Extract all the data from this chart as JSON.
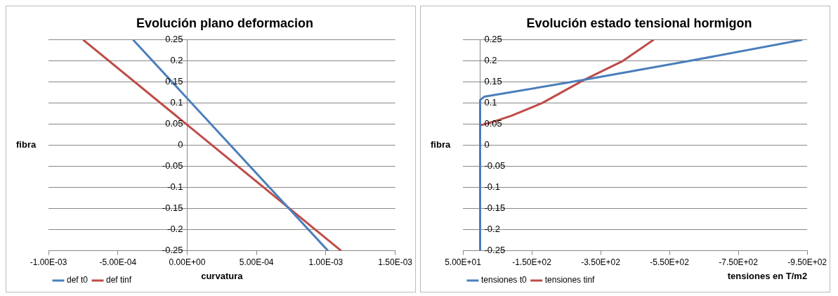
{
  "chart_data": [
    {
      "type": "line",
      "title": "Evolución plano deformacion",
      "xlabel": "curvatura",
      "ylabel": "fibra",
      "xlim": [
        -0.001,
        0.0015
      ],
      "xticks": [
        {
          "value": -0.001,
          "label": "-1.00E-03"
        },
        {
          "value": -0.0005,
          "label": "-5.00E-04"
        },
        {
          "value": 0,
          "label": "0.00E+00"
        },
        {
          "value": 0.0005,
          "label": "5.00E-04"
        },
        {
          "value": 0.001,
          "label": "1.00E-03"
        },
        {
          "value": 0.0015,
          "label": "1.50E-03"
        }
      ],
      "ylim": [
        -0.25,
        0.25
      ],
      "yticks": [
        -0.25,
        -0.2,
        -0.15,
        -0.1,
        -0.05,
        0,
        0.05,
        0.1,
        0.15,
        0.2,
        0.25
      ],
      "grid": "y",
      "legend": "bottom left",
      "marker": "none",
      "line_style": "solid",
      "series": [
        {
          "name": "def t0",
          "color": "#4a7ebb",
          "x": [
            -0.00039,
            0.001015
          ],
          "values": [
            0.25,
            -0.25
          ]
        },
        {
          "name": "def tinf",
          "color": "#be4b48",
          "x": [
            -0.00075,
            0.00111
          ],
          "values": [
            0.25,
            -0.25
          ]
        }
      ]
    },
    {
      "type": "line",
      "title": "Evolución estado tensional hormigon",
      "xlabel": "tensiones en T/m2",
      "ylabel": "fibra",
      "xlim": [
        50,
        -950
      ],
      "xticks": [
        {
          "value": 50,
          "label": "5.00E+01"
        },
        {
          "value": -150,
          "label": "-1.50E+02"
        },
        {
          "value": -350,
          "label": "-3.50E+02"
        },
        {
          "value": -550,
          "label": "-5.50E+02"
        },
        {
          "value": -750,
          "label": "-7.50E+02"
        },
        {
          "value": -950,
          "label": "-9.50E+02"
        }
      ],
      "ylim": [
        -0.25,
        0.25
      ],
      "yticks": [
        -0.25,
        -0.2,
        -0.15,
        -0.1,
        -0.05,
        0,
        0.05,
        0.1,
        0.15,
        0.2,
        0.25
      ],
      "grid": "y",
      "legend": "bottom left",
      "marker": "none",
      "line_style": "solid",
      "series": [
        {
          "name": "tensiones t0",
          "color": "#4a7ebb",
          "x": [
            0,
            0,
            -12,
            -302,
            -609,
            -936
          ],
          "values": [
            -0.25,
            0.107,
            0.115,
            0.155,
            0.2,
            0.25
          ]
        },
        {
          "name": "tensiones tinf",
          "color": "#be4b48",
          "x": [
            0,
            0,
            -43,
            -91,
            -180,
            -302,
            -415,
            -504
          ],
          "values": [
            -0.25,
            0.047,
            0.057,
            0.07,
            0.1,
            0.155,
            0.2,
            0.25
          ]
        }
      ]
    }
  ]
}
